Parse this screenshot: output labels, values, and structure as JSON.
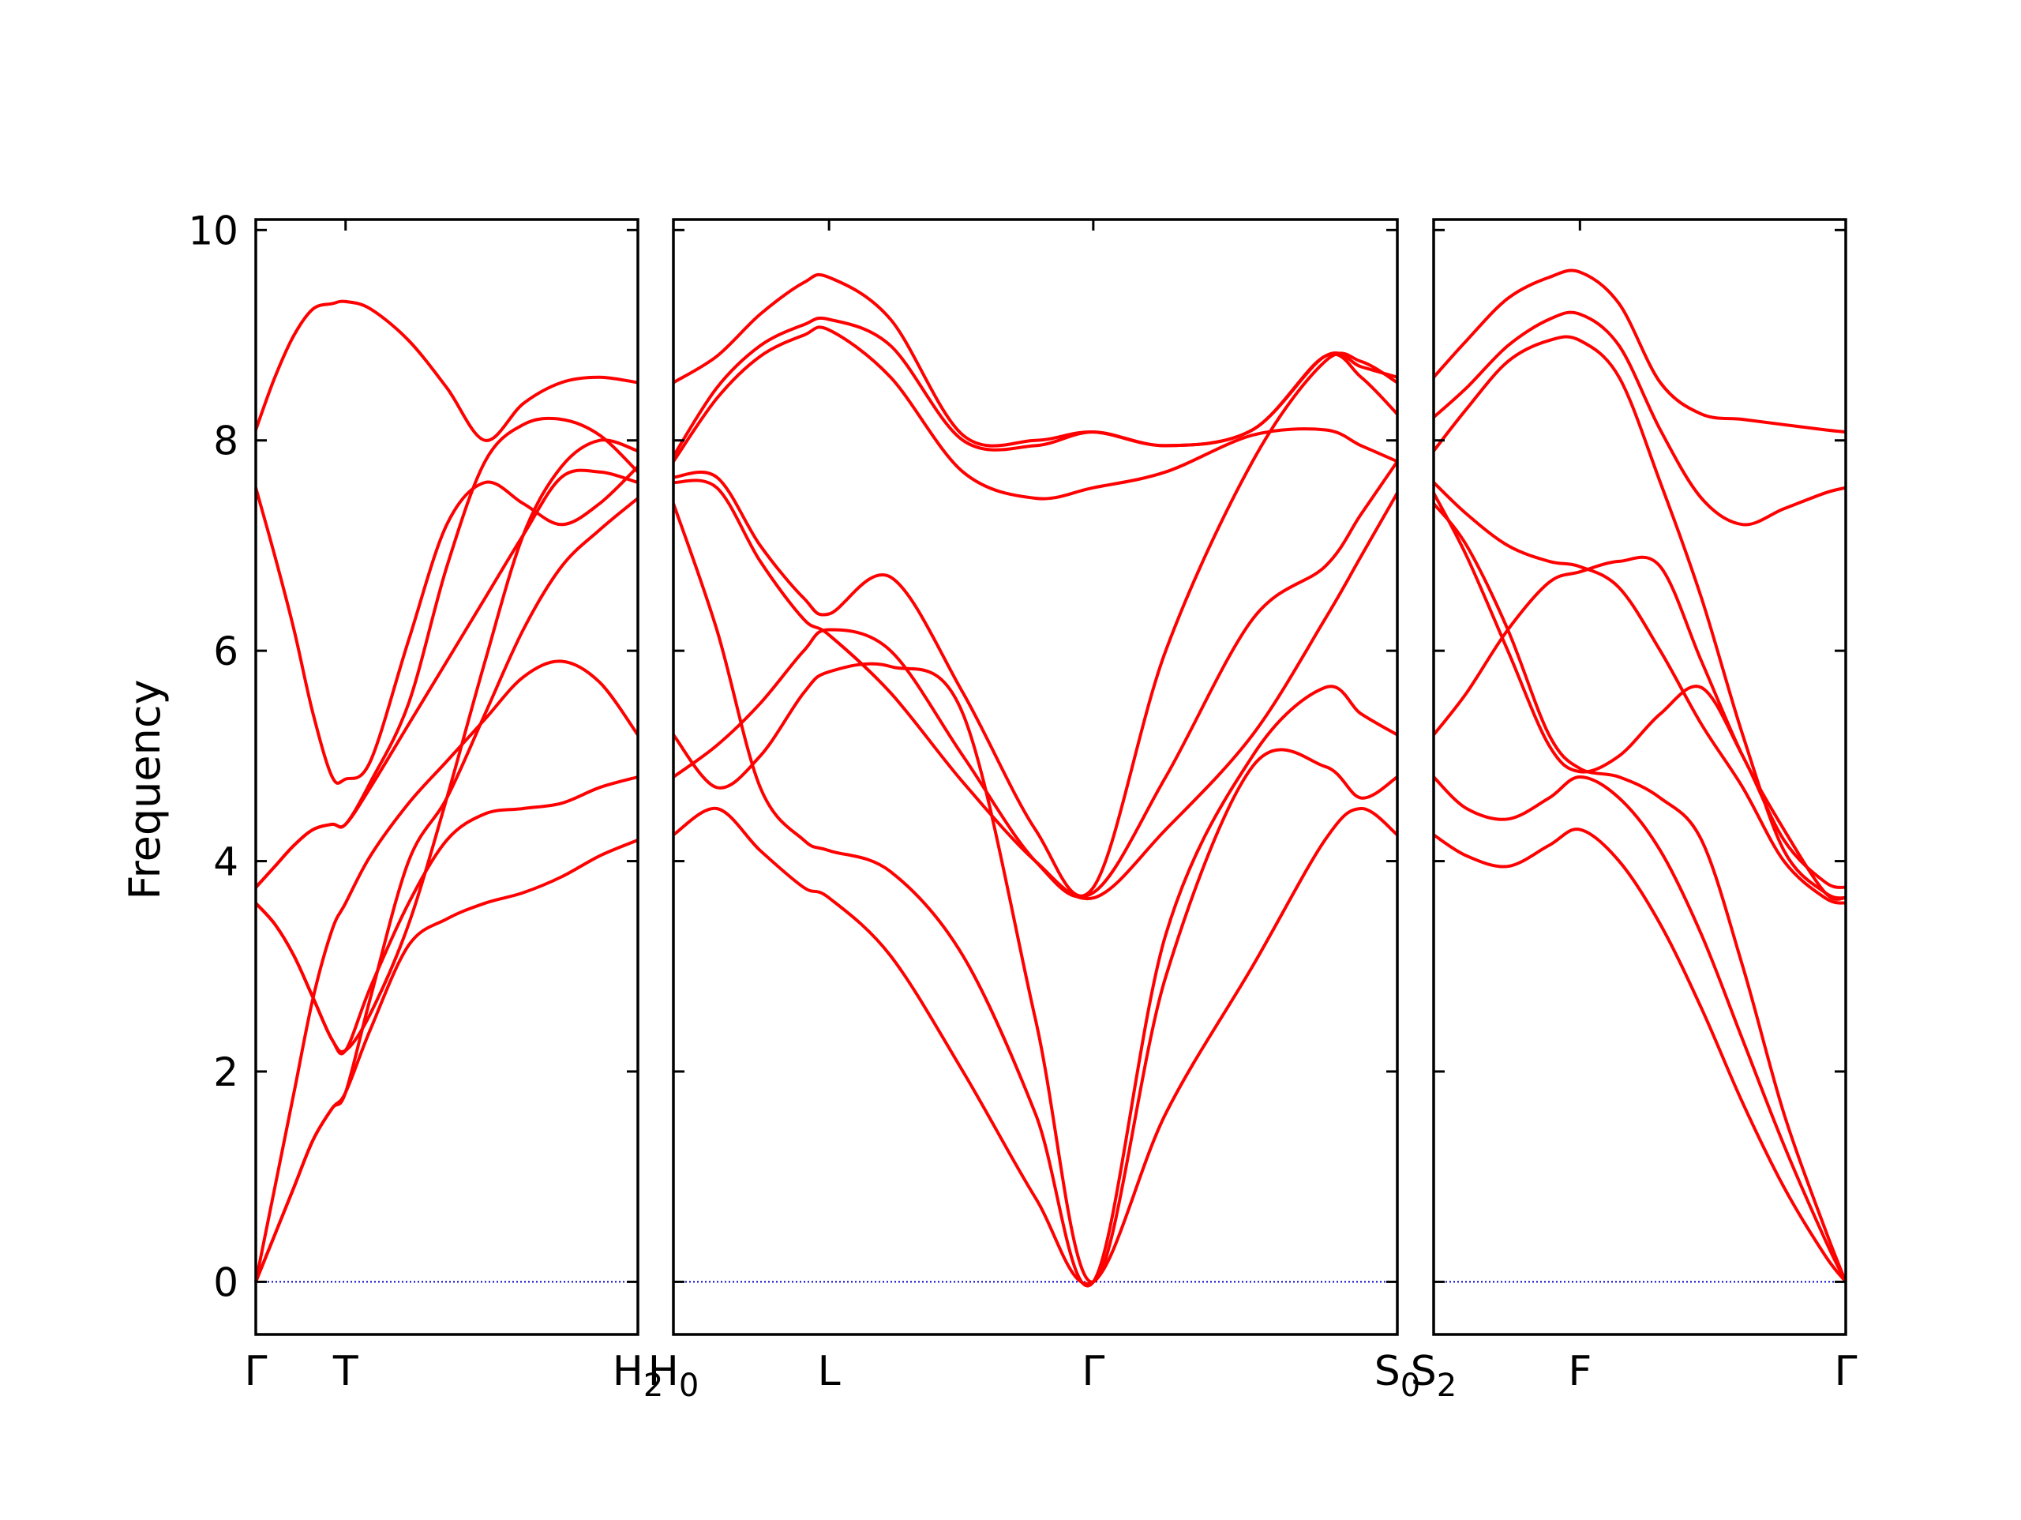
{
  "chart_data": {
    "type": "line",
    "title": "",
    "ylabel": "Frequency",
    "ylim": [
      -0.5,
      10.1
    ],
    "yticks": [
      0,
      2,
      4,
      6,
      8,
      10
    ],
    "grid": false,
    "line_color": "#ff0000",
    "zero_line_color": "#0000cc",
    "panels": [
      {
        "xticks": [
          {
            "x": 0,
            "label": "Γ"
          },
          {
            "x": 0.235,
            "label": "T"
          },
          {
            "x": 1,
            "label": "H",
            "sub": "2"
          }
        ],
        "series": [
          {
            "x": [
              0,
              0.05,
              0.1,
              0.15,
              0.2,
              0.235,
              0.3,
              0.4,
              0.5,
              0.6,
              0.7,
              0.8,
              0.9,
              1
            ],
            "y": [
              0,
              0.45,
              0.9,
              1.35,
              1.65,
              1.8,
              2.4,
              3.2,
              3.45,
              3.6,
              3.7,
              3.85,
              4.05,
              4.2
            ]
          },
          {
            "x": [
              0,
              0.05,
              0.1,
              0.15,
              0.2,
              0.235,
              0.3,
              0.4,
              0.5,
              0.6,
              0.7,
              0.8,
              0.9,
              1
            ],
            "y": [
              0,
              0.9,
              1.8,
              2.7,
              3.35,
              3.6,
              4.05,
              4.55,
              4.95,
              5.35,
              5.75,
              5.9,
              5.7,
              5.2
            ]
          },
          {
            "x": [
              0,
              0.05,
              0.1,
              0.15,
              0.2,
              0.235,
              0.3,
              0.4,
              0.5,
              0.6,
              0.7,
              0.8,
              0.9,
              1
            ],
            "y": [
              3.6,
              3.4,
              3.1,
              2.7,
              2.3,
              2.2,
              2.8,
              3.6,
              4.2,
              4.45,
              4.5,
              4.55,
              4.7,
              4.8
            ]
          },
          {
            "x": [
              0,
              0.05,
              0.1,
              0.15,
              0.2,
              0.235,
              0.3,
              0.4,
              0.5,
              0.6,
              0.7,
              0.8,
              0.9,
              1
            ],
            "y": [
              3.75,
              3.95,
              4.15,
              4.3,
              4.35,
              4.35,
              4.7,
              5.3,
              5.9,
              6.5,
              7.1,
              7.65,
              7.7,
              7.6
            ]
          },
          {
            "x": [
              0,
              0.05,
              0.1,
              0.15,
              0.2,
              0.235,
              0.3,
              0.4,
              0.5,
              0.6,
              0.7,
              0.8,
              0.9,
              1
            ],
            "y": [
              7.55,
              6.9,
              6.2,
              5.4,
              4.8,
              4.78,
              4.95,
              6.1,
              7.2,
              7.6,
              7.4,
              7.2,
              7.4,
              7.75
            ]
          },
          {
            "x": [
              0,
              0.05,
              0.1,
              0.15,
              0.2,
              0.235,
              0.3,
              0.4,
              0.5,
              0.6,
              0.7,
              0.8,
              0.9,
              1
            ],
            "y": [
              8.1,
              8.6,
              9.0,
              9.25,
              9.3,
              9.32,
              9.25,
              8.95,
              8.5,
              8.0,
              8.35,
              8.55,
              8.6,
              8.55
            ]
          },
          {
            "x": [
              0,
              0.05,
              0.1,
              0.15,
              0.2,
              0.235,
              0.3,
              0.4,
              0.5,
              0.6,
              0.7,
              0.8,
              0.9,
              1
            ],
            "y": [
              3.75,
              3.95,
              4.15,
              4.3,
              4.35,
              4.35,
              4.75,
              5.5,
              6.8,
              7.8,
              8.15,
              8.2,
              8.05,
              7.7
            ]
          },
          {
            "x": [
              0,
              0.05,
              0.1,
              0.15,
              0.2,
              0.235,
              0.3,
              0.4,
              0.5,
              0.6,
              0.7,
              0.8,
              0.9,
              1
            ],
            "y": [
              0,
              0.45,
              0.9,
              1.35,
              1.65,
              1.8,
              2.7,
              4.0,
              4.6,
              5.4,
              6.2,
              6.8,
              7.15,
              7.45
            ]
          },
          {
            "x": [
              0,
              0.05,
              0.1,
              0.15,
              0.2,
              0.235,
              0.3,
              0.4,
              0.5,
              0.6,
              0.7,
              0.8,
              0.9,
              1
            ],
            "y": [
              3.6,
              3.4,
              3.1,
              2.7,
              2.3,
              2.2,
              2.55,
              3.4,
              4.6,
              5.9,
              7.1,
              7.75,
              8.0,
              7.9
            ]
          }
        ]
      },
      {
        "xticks": [
          {
            "x": 0,
            "label": "H",
            "sub": "0"
          },
          {
            "x": 0.215,
            "label": "L"
          },
          {
            "x": 0.58,
            "label": "Γ"
          },
          {
            "x": 1,
            "label": "S",
            "sub": "0"
          }
        ],
        "series": [
          {
            "x": [
              0,
              0.06,
              0.12,
              0.18,
              0.215,
              0.3,
              0.4,
              0.5,
              0.58,
              0.68,
              0.8,
              0.9,
              0.95,
              1
            ],
            "y": [
              4.25,
              4.5,
              4.1,
              3.75,
              3.65,
              3.1,
              2.0,
              0.8,
              0,
              1.6,
              3.0,
              4.2,
              4.5,
              4.25
            ]
          },
          {
            "x": [
              0,
              0.06,
              0.12,
              0.18,
              0.215,
              0.3,
              0.4,
              0.5,
              0.58,
              0.68,
              0.8,
              0.9,
              0.95,
              1
            ],
            "y": [
              5.2,
              4.7,
              5.0,
              5.6,
              5.8,
              5.85,
              5.4,
              2.5,
              0,
              2.9,
              4.9,
              4.9,
              4.6,
              4.8
            ]
          },
          {
            "x": [
              0,
              0.06,
              0.12,
              0.18,
              0.215,
              0.3,
              0.4,
              0.5,
              0.58,
              0.68,
              0.8,
              0.9,
              0.95,
              1
            ],
            "y": [
              7.4,
              6.2,
              4.7,
              4.2,
              4.1,
              3.9,
              3.1,
              1.6,
              0,
              3.3,
              5.0,
              5.65,
              5.4,
              5.2
            ]
          },
          {
            "x": [
              0,
              0.06,
              0.12,
              0.18,
              0.215,
              0.3,
              0.4,
              0.5,
              0.58,
              0.68,
              0.8,
              0.9,
              0.95,
              1
            ],
            "y": [
              7.6,
              7.55,
              6.85,
              6.3,
              6.15,
              5.6,
              4.75,
              4.0,
              3.65,
              4.3,
              5.2,
              6.3,
              6.9,
              7.5
            ]
          },
          {
            "x": [
              0,
              0.06,
              0.12,
              0.18,
              0.215,
              0.3,
              0.4,
              0.5,
              0.58,
              0.68,
              0.8,
              0.9,
              0.95,
              1
            ],
            "y": [
              4.8,
              5.1,
              5.5,
              6.0,
              6.2,
              6.0,
              5.0,
              4.0,
              3.7,
              4.8,
              6.3,
              6.8,
              7.3,
              7.8
            ]
          },
          {
            "x": [
              0,
              0.06,
              0.12,
              0.18,
              0.215,
              0.3,
              0.4,
              0.5,
              0.58,
              0.68,
              0.8,
              0.9,
              0.95,
              1
            ],
            "y": [
              7.65,
              7.65,
              7.0,
              6.5,
              6.35,
              6.7,
              5.6,
              4.3,
              3.75,
              6.0,
              7.8,
              8.75,
              8.75,
              8.55
            ]
          },
          {
            "x": [
              0,
              0.06,
              0.12,
              0.18,
              0.215,
              0.3,
              0.4,
              0.5,
              0.58,
              0.68,
              0.8,
              0.9,
              0.95,
              1
            ],
            "y": [
              7.85,
              8.5,
              8.9,
              9.1,
              9.15,
              8.9,
              8.0,
              7.95,
              8.08,
              7.95,
              8.1,
              8.8,
              8.7,
              8.6
            ]
          },
          {
            "x": [
              0,
              0.06,
              0.12,
              0.18,
              0.215,
              0.3,
              0.4,
              0.5,
              0.58,
              0.68,
              0.8,
              0.9,
              0.95,
              1
            ],
            "y": [
              8.55,
              8.8,
              9.2,
              9.5,
              9.55,
              9.15,
              8.05,
              8.0,
              8.08,
              7.95,
              8.1,
              8.8,
              8.6,
              8.25
            ]
          },
          {
            "x": [
              0,
              0.06,
              0.12,
              0.18,
              0.215,
              0.3,
              0.4,
              0.5,
              0.58,
              0.68,
              0.8,
              0.9,
              0.95,
              1
            ],
            "y": [
              7.8,
              8.4,
              8.8,
              9.0,
              9.05,
              8.6,
              7.7,
              7.45,
              7.55,
              7.7,
              8.05,
              8.1,
              7.95,
              7.8
            ]
          }
        ]
      },
      {
        "xticks": [
          {
            "x": 0,
            "label": "S",
            "sub": "2"
          },
          {
            "x": 0.355,
            "label": "F"
          },
          {
            "x": 1,
            "label": "Γ"
          }
        ],
        "series": [
          {
            "x": [
              0,
              0.08,
              0.18,
              0.28,
              0.355,
              0.45,
              0.55,
              0.65,
              0.75,
              0.85,
              0.95,
              1
            ],
            "y": [
              4.25,
              4.05,
              3.95,
              4.15,
              4.3,
              4.0,
              3.4,
              2.6,
              1.7,
              0.9,
              0.25,
              0
            ]
          },
          {
            "x": [
              0,
              0.08,
              0.18,
              0.28,
              0.355,
              0.45,
              0.55,
              0.65,
              0.75,
              0.85,
              0.95,
              1
            ],
            "y": [
              4.8,
              4.5,
              4.4,
              4.6,
              4.8,
              4.6,
              4.1,
              3.3,
              2.3,
              1.3,
              0.4,
              0
            ]
          },
          {
            "x": [
              0,
              0.08,
              0.18,
              0.28,
              0.355,
              0.45,
              0.55,
              0.65,
              0.75,
              0.85,
              0.95,
              1
            ],
            "y": [
              7.4,
              7.0,
              6.2,
              5.2,
              4.88,
              4.8,
              4.6,
              4.2,
              3.0,
              1.6,
              0.5,
              0
            ]
          },
          {
            "x": [
              0,
              0.08,
              0.18,
              0.28,
              0.355,
              0.45,
              0.55,
              0.65,
              0.75,
              0.85,
              0.95,
              1
            ],
            "y": [
              7.5,
              6.9,
              6.0,
              5.1,
              4.85,
              5.0,
              5.4,
              5.65,
              5.0,
              4.2,
              3.8,
              3.75
            ]
          },
          {
            "x": [
              0,
              0.08,
              0.18,
              0.28,
              0.355,
              0.45,
              0.55,
              0.65,
              0.75,
              0.85,
              0.95,
              1
            ],
            "y": [
              5.2,
              5.6,
              6.2,
              6.65,
              6.75,
              6.85,
              6.8,
              5.9,
              5.0,
              4.3,
              3.7,
              3.65
            ]
          },
          {
            "x": [
              0,
              0.08,
              0.18,
              0.28,
              0.355,
              0.45,
              0.55,
              0.65,
              0.75,
              0.85,
              0.95,
              1
            ],
            "y": [
              7.6,
              7.3,
              7.0,
              6.85,
              6.8,
              6.6,
              6.0,
              5.3,
              4.7,
              4.0,
              3.65,
              3.6
            ]
          },
          {
            "x": [
              0,
              0.08,
              0.18,
              0.28,
              0.355,
              0.45,
              0.55,
              0.65,
              0.75,
              0.85,
              0.95,
              1
            ],
            "y": [
              7.9,
              8.3,
              8.75,
              8.95,
              8.95,
              8.6,
              7.6,
              6.5,
              5.2,
              4.1,
              3.7,
              3.65
            ]
          },
          {
            "x": [
              0,
              0.08,
              0.18,
              0.28,
              0.355,
              0.45,
              0.55,
              0.65,
              0.75,
              0.85,
              0.95,
              1
            ],
            "y": [
              8.22,
              8.5,
              8.9,
              9.15,
              9.2,
              8.9,
              8.1,
              7.45,
              7.2,
              7.35,
              7.5,
              7.55
            ]
          },
          {
            "x": [
              0,
              0.08,
              0.18,
              0.28,
              0.355,
              0.45,
              0.55,
              0.65,
              0.75,
              0.85,
              0.95,
              1
            ],
            "y": [
              8.6,
              8.95,
              9.35,
              9.55,
              9.6,
              9.3,
              8.55,
              8.25,
              8.2,
              8.15,
              8.1,
              8.08
            ]
          }
        ]
      }
    ]
  }
}
